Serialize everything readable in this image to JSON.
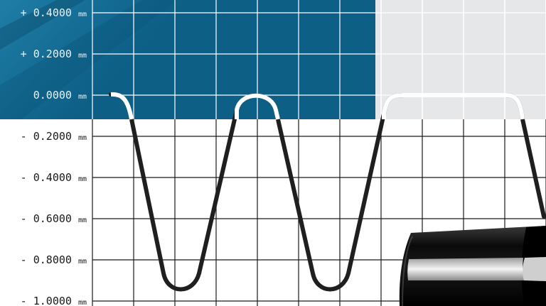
{
  "profile_gauge": {
    "y_axis_ticks": [
      {
        "value": 0.4,
        "label": "+ 0.4000"
      },
      {
        "value": 0.2,
        "label": "+ 0.2000"
      },
      {
        "value": 0.0,
        "label": "0.0000"
      },
      {
        "value": -0.2,
        "label": "- 0.2000"
      },
      {
        "value": -0.4,
        "label": "- 0.4000"
      },
      {
        "value": -0.6,
        "label": "- 0.6000"
      },
      {
        "value": -0.8,
        "label": "- 0.8000"
      },
      {
        "value": -1.0,
        "label": "- 1.0000"
      }
    ],
    "unit": "mm",
    "colors": {
      "dark_blue_panel": "#0d5f86",
      "blue_gradient_end": "#1f7ea7",
      "light_panel": "#e6e7e9",
      "grid_line": "#1a1a1a",
      "grid_line_on_panel": "#ffffff",
      "profile_curve": "#1f1f1f",
      "curve_highlight": "#ffffff"
    },
    "product_image": {
      "name": "black-cylindrical-roller-photo"
    }
  }
}
